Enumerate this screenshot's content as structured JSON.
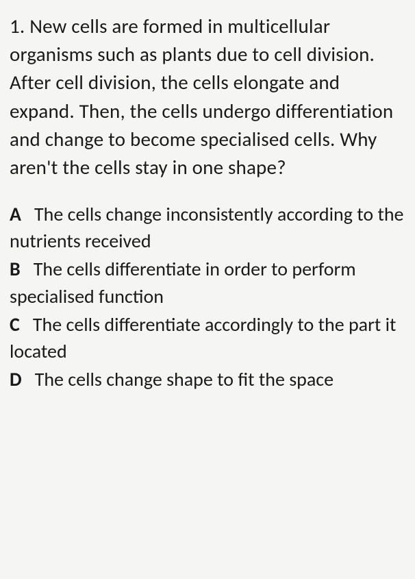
{
  "question": {
    "number": "1.",
    "text": "New cells are formed in multicellular organisms such as plants due to cell division. After cell division, the cells elongate and expand. Then, the cells undergo differentiation and change to become specialised cells. Why aren't the cells stay in one shape?"
  },
  "options": [
    {
      "label": "A",
      "text": "The cells change inconsistently according to the nutrients received"
    },
    {
      "label": "B",
      "text": "The cells differentiate in order to perform specialised function"
    },
    {
      "label": "C",
      "text": "The cells differentiate accordingly to the part it located"
    },
    {
      "label": "D",
      "text": "The cells change shape to fit the space"
    }
  ],
  "styles": {
    "background_color": "#f5f5f4",
    "text_color": "#1a1a1a",
    "font_family": "Calibri, Arial, sans-serif",
    "question_fontsize": 29,
    "option_fontsize": 28,
    "line_height": 1.42
  }
}
